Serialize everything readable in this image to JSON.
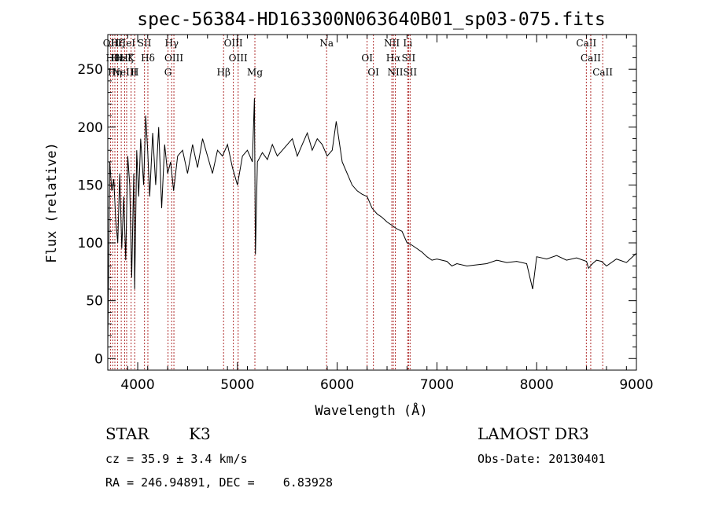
{
  "chart_data": {
    "type": "line",
    "title": "spec-56384-HD163300N063640B01_sp03-075.fits",
    "xlabel": "Wavelength (Å)",
    "ylabel": "Flux (relative)",
    "xlim": [
      3700,
      9000
    ],
    "ylim": [
      -10,
      280
    ],
    "xticks": [
      4000,
      5000,
      6000,
      7000,
      8000,
      9000
    ],
    "yticks": [
      0,
      50,
      100,
      150,
      200,
      250
    ],
    "grid": false,
    "series": [
      {
        "color": "#000000",
        "x": [
          3700,
          3720,
          3740,
          3760,
          3780,
          3800,
          3820,
          3840,
          3860,
          3880,
          3900,
          3920,
          3940,
          3960,
          3970,
          3990,
          4010,
          4030,
          4060,
          4080,
          4100,
          4120,
          4150,
          4180,
          4210,
          4240,
          4270,
          4300,
          4330,
          4360,
          4400,
          4450,
          4500,
          4550,
          4600,
          4650,
          4700,
          4750,
          4800,
          4850,
          4900,
          4950,
          5000,
          5050,
          5100,
          5150,
          5170,
          5180,
          5200,
          5250,
          5300,
          5350,
          5400,
          5450,
          5500,
          5550,
          5600,
          5650,
          5700,
          5750,
          5800,
          5850,
          5900,
          5950,
          5990,
          6050,
          6100,
          6150,
          6200,
          6250,
          6300,
          6350,
          6400,
          6450,
          6500,
          6550,
          6600,
          6650,
          6700,
          6750,
          6800,
          6850,
          6900,
          6950,
          7000,
          7050,
          7100,
          7150,
          7200,
          7300,
          7400,
          7500,
          7600,
          7700,
          7800,
          7900,
          7960,
          8000,
          8100,
          8200,
          8300,
          8400,
          8500,
          8520,
          8560,
          8600,
          8650,
          8700,
          8800,
          8900,
          9000
        ],
        "y": [
          10,
          170,
          145,
          155,
          120,
          100,
          160,
          95,
          140,
          85,
          175,
          150,
          70,
          160,
          60,
          180,
          140,
          190,
          150,
          210,
          180,
          140,
          195,
          150,
          200,
          130,
          185,
          160,
          170,
          145,
          175,
          180,
          160,
          185,
          165,
          190,
          175,
          160,
          180,
          175,
          185,
          165,
          150,
          175,
          180,
          170,
          225,
          90,
          170,
          178,
          172,
          185,
          175,
          180,
          185,
          190,
          175,
          185,
          195,
          180,
          190,
          185,
          175,
          180,
          205,
          170,
          160,
          150,
          145,
          142,
          140,
          130,
          125,
          122,
          118,
          115,
          112,
          110,
          100,
          98,
          95,
          92,
          88,
          85,
          86,
          85,
          84,
          80,
          82,
          80,
          81,
          82,
          85,
          83,
          84,
          82,
          60,
          88,
          86,
          89,
          85,
          87,
          84,
          78,
          82,
          85,
          84,
          80,
          86,
          83,
          91
        ]
      }
    ],
    "line_markers": {
      "color": "#b03030",
      "lines": [
        {
          "x": 3727,
          "labels": [
            "OII"
          ]
        },
        {
          "x": 3750,
          "labels": [
            "Hθ"
          ]
        },
        {
          "x": 3771,
          "labels": [
            "Hη"
          ]
        },
        {
          "x": 3798,
          "labels": [
            "Hζ",
            "Hε"
          ]
        },
        {
          "x": 3835,
          "labels": [
            "Hε"
          ]
        },
        {
          "x": 3869,
          "labels": [
            "NeIII"
          ]
        },
        {
          "x": 3889,
          "labels": [
            "HeI",
            "Hζ"
          ]
        },
        {
          "x": 3934,
          "labels": [
            "K"
          ]
        },
        {
          "x": 3970,
          "labels": [
            "H"
          ]
        },
        {
          "x": 4068,
          "labels": [
            "SII"
          ]
        },
        {
          "x": 4102,
          "labels": [
            "Hδ"
          ]
        },
        {
          "x": 4304,
          "labels": [
            "G"
          ]
        },
        {
          "x": 4341,
          "labels": [
            "Hγ"
          ]
        },
        {
          "x": 4363,
          "labels": [
            "OIII"
          ]
        },
        {
          "x": 4861,
          "labels": [
            "Hβ"
          ]
        },
        {
          "x": 4959,
          "labels": [
            "OIII"
          ]
        },
        {
          "x": 5007,
          "labels": [
            "OIII"
          ]
        },
        {
          "x": 5175,
          "labels": [
            "Mg"
          ]
        },
        {
          "x": 5894,
          "labels": [
            "Na"
          ]
        },
        {
          "x": 6300,
          "labels": [
            "OI"
          ]
        },
        {
          "x": 6363,
          "labels": [
            "OI"
          ]
        },
        {
          "x": 6548,
          "labels": [
            "NII"
          ]
        },
        {
          "x": 6563,
          "labels": [
            "Hα"
          ]
        },
        {
          "x": 6583,
          "labels": [
            "NII"
          ]
        },
        {
          "x": 6707,
          "labels": [
            "Li"
          ]
        },
        {
          "x": 6716,
          "labels": [
            "SII"
          ]
        },
        {
          "x": 6731,
          "labels": [
            "SII"
          ]
        },
        {
          "x": 8498,
          "labels": [
            "CaII"
          ]
        },
        {
          "x": 8542,
          "labels": [
            "CaII"
          ]
        },
        {
          "x": 8662,
          "labels": [
            "CaII"
          ]
        }
      ]
    }
  },
  "info": {
    "object_class": "STAR",
    "subclass": "K3",
    "cz": "cz = 35.9 ± 3.4 km/s",
    "coords": "RA = 246.94891, DEC =    6.83928",
    "survey": "LAMOST DR3",
    "obs_date": "Obs-Date: 20130401"
  }
}
